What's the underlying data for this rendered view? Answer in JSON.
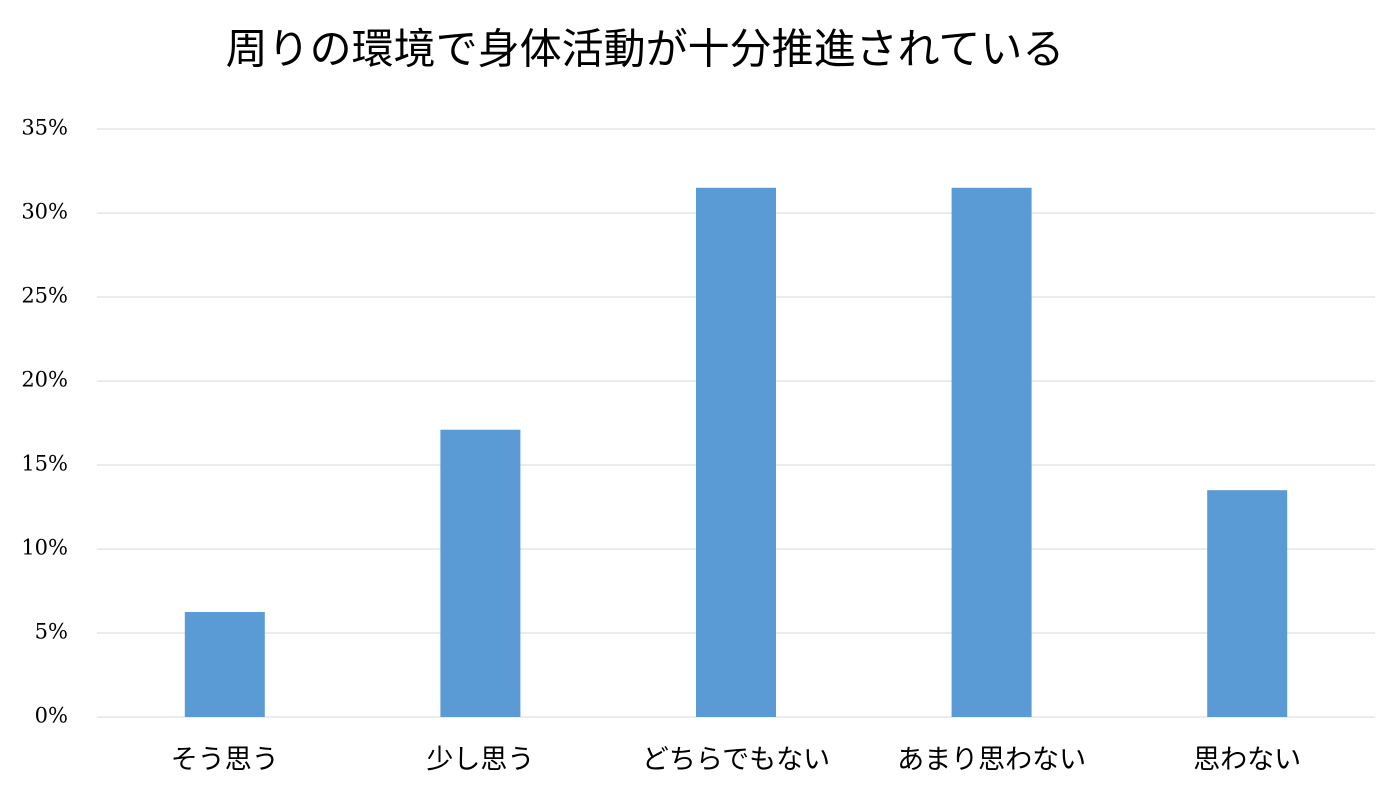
{
  "chart_data": {
    "type": "bar",
    "title": "周りの環境で身体活動が十分推進されている",
    "categories": [
      "そう思う",
      "少し思う",
      "どちらでもない",
      "あまり思わない",
      "思わない"
    ],
    "values": [
      6.25,
      17.1,
      31.5,
      31.5,
      13.5
    ],
    "color": "#5b9bd5",
    "ylim": [
      0,
      35
    ],
    "yticks": [
      {
        "value": 0,
        "label": "0%"
      },
      {
        "value": 5,
        "label": "5%"
      },
      {
        "value": 10,
        "label": "10%"
      },
      {
        "value": 15,
        "label": "15%"
      },
      {
        "value": 20,
        "label": "20%"
      },
      {
        "value": 25,
        "label": "25%"
      },
      {
        "value": 30,
        "label": "30%"
      },
      {
        "value": 35,
        "label": "35%"
      }
    ],
    "grid": true
  }
}
